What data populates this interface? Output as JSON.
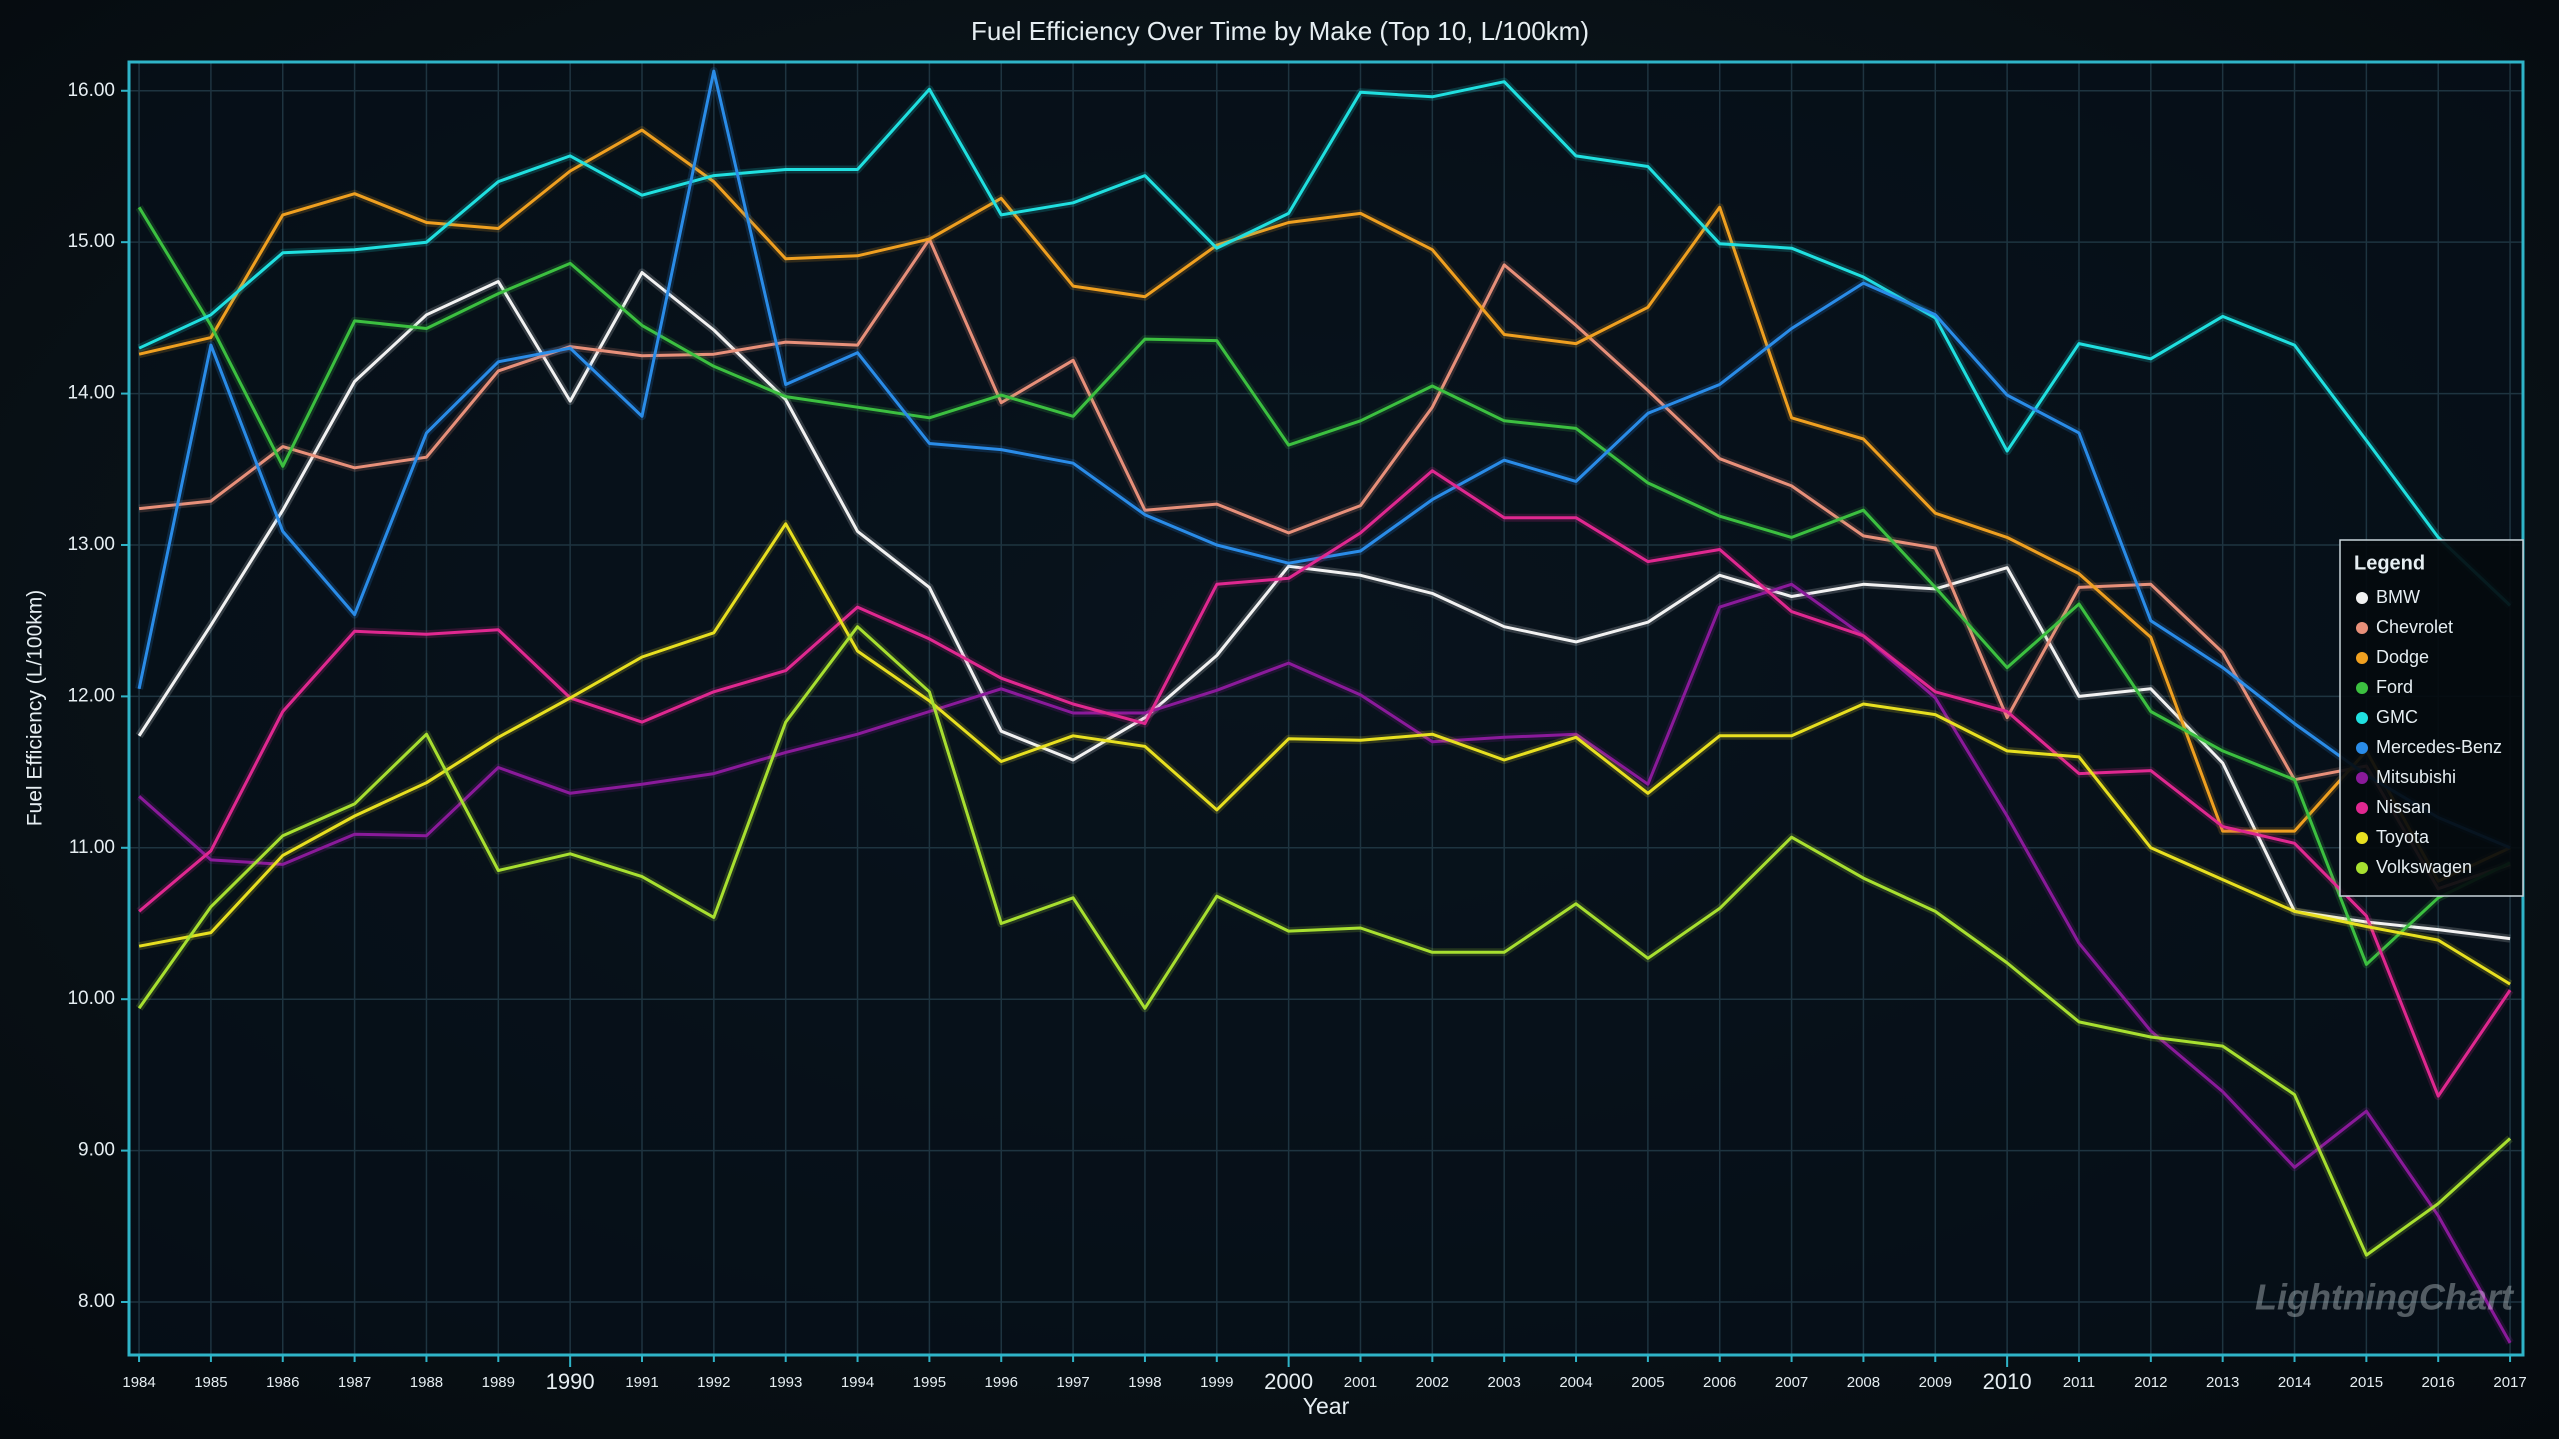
{
  "chart_data": {
    "type": "line",
    "title": "Fuel Efficiency Over Time by Make (Top 10, L/100km)",
    "xlabel": "Year",
    "ylabel": "Fuel Efficiency (L/100km)",
    "legend_title": "Legend",
    "legend": "right",
    "grid": true,
    "watermark": "LightningChart",
    "x": [
      1984,
      1985,
      1986,
      1987,
      1988,
      1989,
      1990,
      1991,
      1992,
      1993,
      1994,
      1995,
      1996,
      1997,
      1998,
      1999,
      2000,
      2001,
      2002,
      2003,
      2004,
      2005,
      2006,
      2007,
      2008,
      2009,
      2010,
      2011,
      2012,
      2013,
      2014,
      2015,
      2016,
      2017
    ],
    "xlim": [
      1983.86,
      2017.18
    ],
    "xticks": [
      1984,
      1985,
      1986,
      1987,
      1988,
      1989,
      1990,
      1991,
      1992,
      1993,
      1994,
      1995,
      1996,
      1997,
      1998,
      1999,
      2000,
      2001,
      2002,
      2003,
      2004,
      2005,
      2006,
      2007,
      2008,
      2009,
      2010,
      2011,
      2012,
      2013,
      2014,
      2015,
      2016,
      2017
    ],
    "ylim": [
      7.65,
      16.19
    ],
    "yticks": [
      {
        "value": 8,
        "label": "8.00"
      },
      {
        "value": 9,
        "label": "9.00"
      },
      {
        "value": 10,
        "label": "10.00"
      },
      {
        "value": 11,
        "label": "11.00"
      },
      {
        "value": 12,
        "label": "12.00"
      },
      {
        "value": 13,
        "label": "13.00"
      },
      {
        "value": 14,
        "label": "14.00"
      },
      {
        "value": 15,
        "label": "15.00"
      },
      {
        "value": 16,
        "label": "16.00"
      }
    ],
    "series": [
      {
        "name": "BMW",
        "color": "#f2f2f2",
        "values": [
          11.74,
          12.47,
          13.23,
          14.08,
          14.52,
          14.74,
          13.95,
          14.8,
          14.42,
          13.96,
          13.09,
          12.72,
          11.77,
          11.58,
          11.86,
          12.27,
          12.86,
          12.8,
          12.68,
          12.46,
          12.36,
          12.49,
          12.8,
          12.66,
          12.74,
          12.71,
          12.85,
          12.0,
          12.05,
          11.56,
          10.58,
          10.51,
          10.46,
          10.4
        ]
      },
      {
        "name": "Chevrolet",
        "color": "#e8907a",
        "values": [
          13.24,
          13.29,
          13.65,
          13.51,
          13.58,
          14.15,
          14.31,
          14.25,
          14.26,
          14.34,
          14.32,
          15.02,
          13.94,
          14.22,
          13.23,
          13.27,
          13.08,
          13.26,
          13.91,
          14.85,
          14.45,
          14.02,
          13.57,
          13.39,
          13.06,
          12.98,
          11.86,
          12.72,
          12.74,
          12.29,
          11.45,
          11.54,
          10.73,
          10.89
        ]
      },
      {
        "name": "Dodge",
        "color": "#f0a020",
        "values": [
          14.26,
          14.37,
          15.18,
          15.32,
          15.13,
          15.09,
          15.47,
          15.74,
          15.4,
          14.89,
          14.91,
          15.02,
          15.29,
          14.71,
          14.64,
          14.98,
          15.13,
          15.19,
          14.95,
          14.39,
          14.33,
          14.57,
          15.23,
          13.84,
          13.7,
          13.21,
          13.05,
          12.81,
          12.39,
          11.11,
          11.11,
          11.64,
          10.78,
          11.0
        ]
      },
      {
        "name": "Ford",
        "color": "#3cc040",
        "values": [
          15.23,
          14.45,
          13.52,
          14.48,
          14.43,
          14.66,
          14.86,
          14.45,
          14.18,
          13.98,
          13.91,
          13.84,
          13.99,
          13.85,
          14.36,
          14.35,
          13.66,
          13.82,
          14.05,
          13.82,
          13.77,
          13.41,
          13.19,
          13.05,
          13.23,
          12.72,
          12.19,
          12.61,
          11.9,
          11.64,
          11.45,
          10.23,
          10.67,
          10.9
        ]
      },
      {
        "name": "GMC",
        "color": "#20e0e0",
        "values": [
          14.3,
          14.52,
          14.93,
          14.95,
          15.0,
          15.4,
          15.57,
          15.31,
          15.44,
          15.48,
          15.48,
          16.01,
          15.18,
          15.26,
          15.44,
          14.96,
          15.19,
          15.99,
          15.96,
          16.06,
          15.57,
          15.5,
          14.99,
          14.96,
          14.77,
          14.5,
          13.62,
          14.33,
          14.23,
          14.51,
          14.32,
          13.69,
          13.05,
          12.6
        ]
      },
      {
        "name": "Mercedes-Benz",
        "color": "#2a8ce8",
        "values": [
          12.05,
          14.32,
          13.09,
          12.54,
          13.74,
          14.21,
          14.3,
          13.85,
          16.13,
          14.06,
          14.27,
          13.67,
          13.63,
          13.54,
          13.2,
          13.0,
          12.88,
          12.96,
          13.3,
          13.56,
          13.42,
          13.87,
          14.06,
          14.43,
          14.73,
          14.52,
          13.99,
          13.74,
          12.5,
          12.19,
          11.82,
          11.48,
          11.2,
          11.0
        ]
      },
      {
        "name": "Mitsubishi",
        "color": "#8a1a9a",
        "values": [
          11.34,
          10.92,
          10.89,
          11.09,
          11.08,
          11.53,
          11.36,
          11.42,
          11.49,
          11.63,
          11.75,
          11.9,
          12.05,
          11.89,
          11.89,
          12.04,
          12.22,
          12.01,
          11.7,
          11.73,
          11.75,
          11.42,
          12.59,
          12.74,
          12.4,
          11.99,
          11.21,
          10.37,
          9.79,
          9.39,
          8.89,
          9.26,
          8.57,
          7.73
        ]
      },
      {
        "name": "Nissan",
        "color": "#e02890",
        "values": [
          10.58,
          10.98,
          11.9,
          12.43,
          12.41,
          12.44,
          11.99,
          11.83,
          12.03,
          12.17,
          12.59,
          12.38,
          12.12,
          11.95,
          11.82,
          12.74,
          12.78,
          13.08,
          13.49,
          13.18,
          13.18,
          12.89,
          12.97,
          12.56,
          12.4,
          12.03,
          11.9,
          11.49,
          11.51,
          11.14,
          11.03,
          10.55,
          9.36,
          10.06
        ]
      },
      {
        "name": "Toyota",
        "color": "#e8e020",
        "values": [
          10.35,
          10.44,
          10.95,
          11.21,
          11.43,
          11.73,
          11.99,
          12.26,
          12.42,
          13.14,
          12.3,
          11.97,
          11.57,
          11.74,
          11.67,
          11.25,
          11.72,
          11.71,
          11.75,
          11.58,
          11.73,
          11.36,
          11.74,
          11.74,
          11.95,
          11.88,
          11.64,
          11.6,
          11.0,
          10.79,
          10.58,
          10.48,
          10.39,
          10.1
        ]
      },
      {
        "name": "Volkswagen",
        "color": "#a8e030",
        "values": [
          9.94,
          10.61,
          11.08,
          11.29,
          11.75,
          10.85,
          10.96,
          10.81,
          10.54,
          11.83,
          12.46,
          12.03,
          10.5,
          10.67,
          9.94,
          10.68,
          10.45,
          10.47,
          10.31,
          10.31,
          10.63,
          10.27,
          10.6,
          11.07,
          10.8,
          10.58,
          10.24,
          9.85,
          9.75,
          9.69,
          9.37,
          8.31,
          8.65,
          9.08
        ]
      }
    ]
  }
}
